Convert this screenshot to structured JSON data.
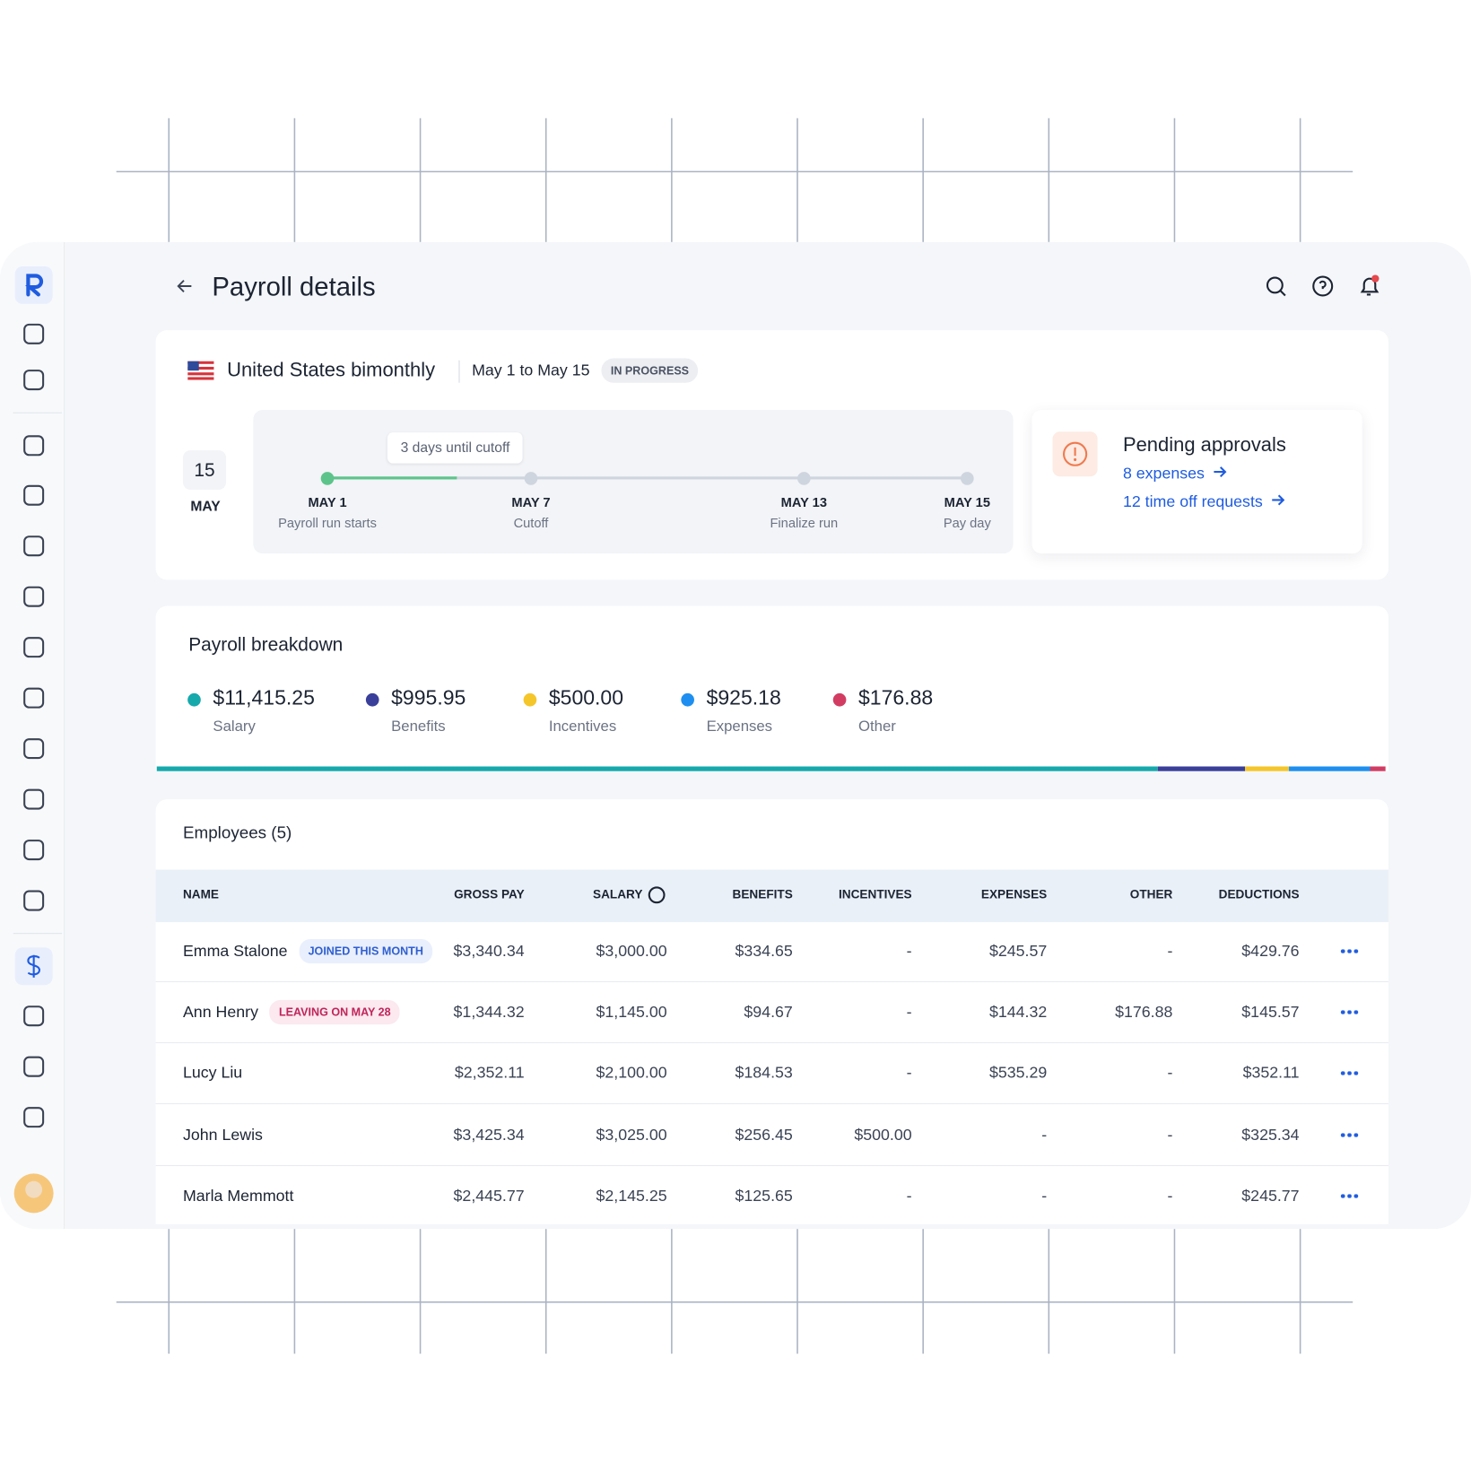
{
  "header": {
    "title": "Payroll details"
  },
  "run": {
    "name": "United States bimonthly",
    "period": "May 1 to May 15",
    "status": "IN PROGRESS",
    "calendar": {
      "day": "15",
      "month": "MAY"
    },
    "tooltip": "3 days until cutoff",
    "steps": [
      {
        "date": "MAY 1",
        "label": "Payroll run starts"
      },
      {
        "date": "MAY 7",
        "label": "Cutoff"
      },
      {
        "date": "MAY 13",
        "label": "Finalize run"
      },
      {
        "date": "MAY 15",
        "label": "Pay day"
      }
    ]
  },
  "pending": {
    "title": "Pending approvals",
    "links": [
      "8 expenses",
      "12 time off requests"
    ]
  },
  "breakdown": {
    "title": "Payroll breakdown",
    "items": [
      {
        "amount": "$11,415.25",
        "value": 11415.25,
        "name": "Salary",
        "color": "#16a9ac"
      },
      {
        "amount": "$995.95",
        "value": 995.95,
        "name": "Benefits",
        "color": "#3a3f9a"
      },
      {
        "amount": "$500.00",
        "value": 500.0,
        "name": "Incentives",
        "color": "#f5c62a"
      },
      {
        "amount": "$925.18",
        "value": 925.18,
        "name": "Expenses",
        "color": "#1e8ff0"
      },
      {
        "amount": "$176.88",
        "value": 176.88,
        "name": "Other",
        "color": "#d23c63"
      }
    ]
  },
  "employees": {
    "title": "Employees (5)",
    "columns": [
      "NAME",
      "GROSS PAY",
      "SALARY",
      "BENEFITS",
      "INCENTIVES",
      "EXPENSES",
      "OTHER",
      "DEDUCTIONS"
    ],
    "rows": [
      {
        "name": "Emma Stalone",
        "badge": {
          "text": "JOINED THIS MONTH",
          "color": "#2f5fd0",
          "background": "#e9effc"
        },
        "cells": [
          "$3,340.34",
          "$3,000.00",
          "$334.65",
          "-",
          "$245.57",
          "-",
          "$429.76"
        ]
      },
      {
        "name": "Ann Henry",
        "badge": {
          "text": "LEAVING ON MAY 28",
          "color": "#c0245a",
          "background": "#fbe9ef"
        },
        "cells": [
          "$1,344.32",
          "$1,145.00",
          "$94.67",
          "-",
          "$144.32",
          "$176.88",
          "$145.57"
        ]
      },
      {
        "name": "Lucy Liu",
        "cells": [
          "$2,352.11",
          "$2,100.00",
          "$184.53",
          "-",
          "$535.29",
          "-",
          "$352.11"
        ]
      },
      {
        "name": "John Lewis",
        "cells": [
          "$3,425.34",
          "$3,025.00",
          "$256.45",
          "$500.00",
          "-",
          "-",
          "$325.34"
        ]
      },
      {
        "name": "Marla Memmott",
        "cells": [
          "$2,445.77",
          "$2,145.25",
          "$125.65",
          "-",
          "-",
          "-",
          "$245.77"
        ]
      }
    ]
  }
}
